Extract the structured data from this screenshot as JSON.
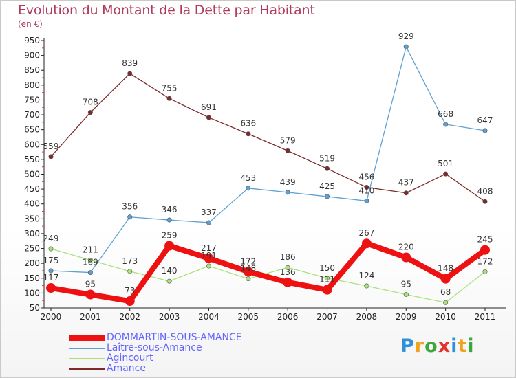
{
  "title": "Evolution du Montant de la Dette par Habitant",
  "subtitle": "(en €)",
  "logo": {
    "letters": [
      {
        "ch": "P",
        "color": "#2f8fd8"
      },
      {
        "ch": "r",
        "color": "#f2a21b"
      },
      {
        "ch": "o",
        "color": "#3ca73c"
      },
      {
        "ch": "x",
        "color": "#e4332c"
      },
      {
        "ch": "i",
        "color": "#2f8fd8"
      },
      {
        "ch": "t",
        "color": "#f2a21b"
      },
      {
        "ch": "i",
        "color": "#3ca73c"
      }
    ]
  },
  "chart_data": {
    "type": "line",
    "title": "Evolution du Montant de la Dette par Habitant",
    "ylabel": "(en €)",
    "xlabel": "",
    "ylim": [
      50,
      950
    ],
    "yticks": [
      50,
      100,
      150,
      200,
      250,
      300,
      350,
      400,
      450,
      500,
      550,
      600,
      650,
      700,
      750,
      800,
      850,
      900,
      950
    ],
    "grid": false,
    "legend": "bottom-left",
    "categories": [
      "2000",
      "2001",
      "2002",
      "2003",
      "2004",
      "2005",
      "2006",
      "2007",
      "2008",
      "2009",
      "2010",
      "2011"
    ],
    "series": [
      {
        "name": "DOMMARTIN-SOUS-AMANCE",
        "color": "#ee1111",
        "emphasis": true,
        "values": [
          117,
          95,
          73,
          259,
          217,
          172,
          136,
          111,
          267,
          220,
          148,
          245
        ]
      },
      {
        "name": "Laître-sous-Amance",
        "color": "#5fa0d2",
        "emphasis": false,
        "values": [
          175,
          169,
          356,
          346,
          337,
          453,
          439,
          425,
          410,
          929,
          668,
          647
        ]
      },
      {
        "name": "Agincourt",
        "color": "#a9e27a",
        "emphasis": false,
        "values": [
          249,
          211,
          173,
          140,
          191,
          148,
          186,
          150,
          124,
          95,
          68,
          172
        ]
      },
      {
        "name": "Amance",
        "color": "#7e2a2a",
        "emphasis": false,
        "values": [
          559,
          708,
          839,
          755,
          691,
          636,
          579,
          519,
          456,
          437,
          501,
          408
        ]
      }
    ]
  }
}
